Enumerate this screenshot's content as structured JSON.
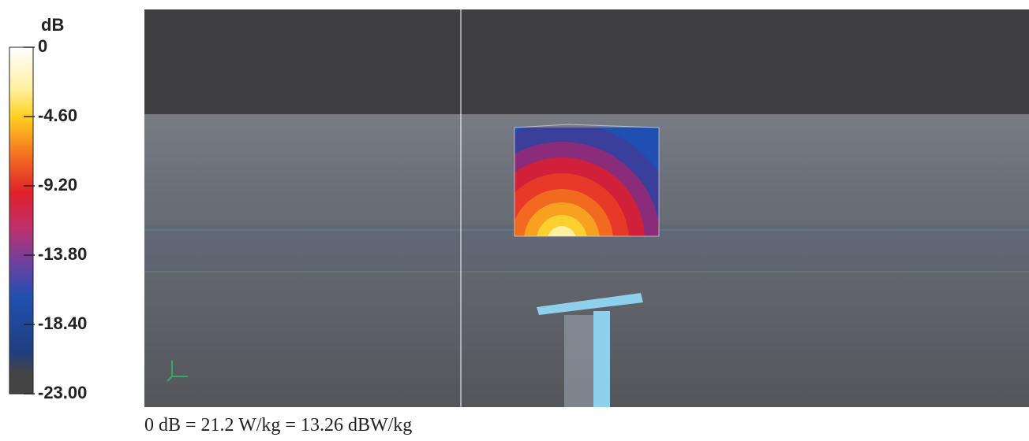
{
  "colorbar": {
    "unit": "dB",
    "ticks": [
      0,
      {
        "value": -4.6,
        "label": "-4.60"
      },
      {
        "value": -9.2,
        "label": "-9.20"
      },
      {
        "value": -13.8,
        "label": "-13.80"
      },
      {
        "value": -18.4,
        "label": "-18.40"
      },
      {
        "value": -23,
        "label": "-23.00"
      }
    ]
  },
  "caption": "0 dB = 21.2 W/kg = 13.26 dBW/kg"
}
